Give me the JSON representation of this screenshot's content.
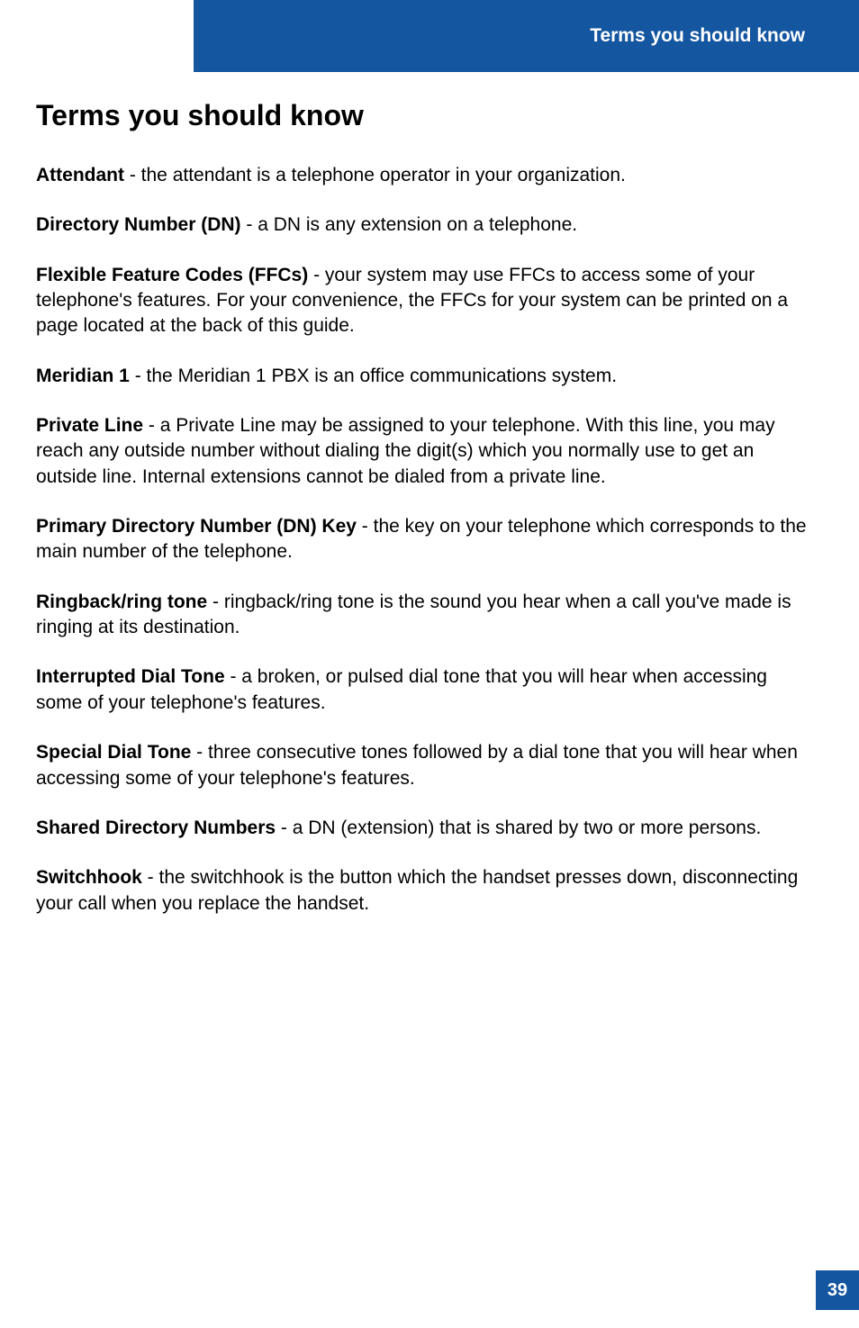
{
  "header": {
    "title": "Terms you should know"
  },
  "heading": "Terms you should know",
  "terms": [
    {
      "name": "Attendant",
      "definition": " - the attendant is a telephone operator in your organization."
    },
    {
      "name": "Directory Number (DN)",
      "definition": " - a DN is any extension on a telephone."
    },
    {
      "name": "Flexible Feature Codes (FFCs)",
      "definition": " - your system may use FFCs to access some of your telephone's features. For your convenience, the FFCs for your system can be printed on a page located at the back of this guide."
    },
    {
      "name": "Meridian 1",
      "definition": " - the Meridian 1 PBX is an office communications system."
    },
    {
      "name": "Private Line",
      "definition": " - a Private Line may be assigned to your telephone. With this line, you may reach any outside number without dialing the digit(s) which you normally use to get an outside line. Internal extensions cannot be dialed from a private line."
    },
    {
      "name": "Primary Directory Number (DN) Key",
      "definition": " - the key on your telephone which corresponds to the main number of the telephone."
    },
    {
      "name": "Ringback/ring tone",
      "definition": " - ringback/ring tone is the sound you hear when a call you've made is ringing at its destination."
    },
    {
      "name": "Interrupted Dial Tone",
      "definition": " - a broken, or pulsed dial tone that you will hear when accessing some of your telephone's features."
    },
    {
      "name": "Special Dial Tone",
      "definition": " - three consecutive tones followed by a dial tone that you will hear when accessing some of your telephone's features."
    },
    {
      "name": "Shared Directory Numbers",
      "definition": " - a DN (extension) that is shared by two or more persons."
    },
    {
      "name": "Switchhook",
      "definition": " - the switchhook is the button which the handset presses down, disconnecting your call when you replace the handset."
    }
  ],
  "pageNumber": "39",
  "colors": {
    "headerBg": "#1456a0",
    "headerText": "#ffffff",
    "bodyText": "#000000",
    "pageBg": "#ffffff"
  }
}
